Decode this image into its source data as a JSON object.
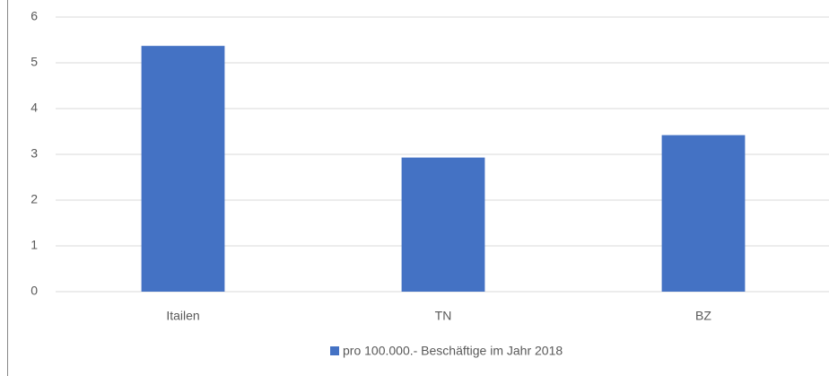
{
  "chart_data": {
    "type": "bar",
    "categories": [
      "Itailen",
      "TN",
      "BZ"
    ],
    "series": [
      {
        "name": "pro 100.000.- Beschäftige im Jahr 2018",
        "color": "#4472c4",
        "values": [
          5.37,
          2.93,
          3.42
        ]
      }
    ],
    "ylim": [
      0,
      6
    ],
    "yticks": [
      0,
      1,
      2,
      3,
      4,
      5,
      6
    ],
    "grid": true,
    "legend": "bottom"
  }
}
